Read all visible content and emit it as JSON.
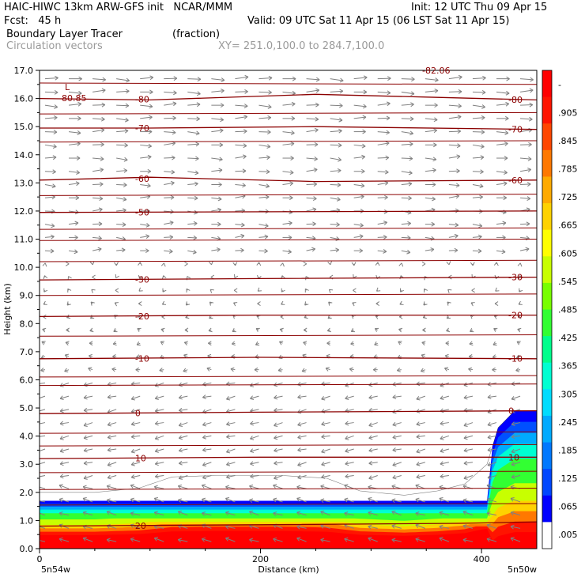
{
  "header": {
    "model_line": "HAIC-HIWC 13km ARW-GFS init   NCAR/MMM",
    "init_line": "Init: 12 UTC Thu 09 Apr 15",
    "fcst_line": "Fcst:   45 h",
    "valid_line": "Valid: 09 UTC Sat 11 Apr 15 (06 LST Sat 11 Apr 15)",
    "field1_name": "Boundary Layer Tracer",
    "field1_units": "(fraction)",
    "field2_name": "Circulation vectors",
    "xsec_endpoints": "XY= 251.0,100.0 to 284.7,100.0"
  },
  "colors": {
    "contour": "#8b0000",
    "vector": "#808080",
    "colorbar": [
      "#ffffff",
      "#0000ff",
      "#0046ff",
      "#0078ff",
      "#00aaff",
      "#00dcff",
      "#00ffd2",
      "#00ff8c",
      "#32ff32",
      "#78ff00",
      "#c8ff00",
      "#ffff00",
      "#ffd200",
      "#ffaa00",
      "#ff7800",
      "#ff4600",
      "#ff1400",
      "#ff0000"
    ]
  },
  "chart_data": {
    "type": "heatmap",
    "title": "Boundary Layer Tracer",
    "units": "(fraction)",
    "xlabel": "Distance (km)",
    "ylabel": "Height (km)",
    "xlim": [
      0,
      450
    ],
    "ylim": [
      0,
      17
    ],
    "x_ticks": [
      "0",
      "200",
      "400"
    ],
    "y_ticks": [
      "0.0",
      "1.0",
      "2.0",
      "3.0",
      "4.0",
      "5.0",
      "6.0",
      "7.0",
      "8.0",
      "9.0",
      "10.0",
      "11.0",
      "12.0",
      "13.0",
      "14.0",
      "15.0",
      "16.0",
      "17.0"
    ],
    "x_endpoint_labels": [
      "5n54w",
      "5n50w"
    ],
    "colorbar_labels": [
      "-",
      ".905",
      ".845",
      ".785",
      ".725",
      ".665",
      ".605",
      ".545",
      ".485",
      ".425",
      ".365",
      ".305",
      ".245",
      ".185",
      ".125",
      ".065",
      ".005"
    ],
    "tracer_top_km": [
      [
        0,
        2.0
      ],
      [
        50,
        2.0
      ],
      [
        90,
        2.15
      ],
      [
        120,
        2.55
      ],
      [
        160,
        2.6
      ],
      [
        220,
        2.6
      ],
      [
        260,
        2.5
      ],
      [
        290,
        2.05
      ],
      [
        330,
        1.9
      ],
      [
        360,
        2.05
      ],
      [
        385,
        2.3
      ],
      [
        405,
        3.0
      ],
      [
        415,
        4.3
      ],
      [
        430,
        4.9
      ],
      [
        450,
        4.9
      ]
    ],
    "temperature_contours": [
      {
        "label": "-80",
        "values": [
          [
            0,
            16.0
          ],
          [
            100,
            15.95
          ],
          [
            250,
            16.15
          ],
          [
            350,
            16.05
          ],
          [
            450,
            15.95
          ]
        ]
      },
      {
        "label": "-70",
        "values": [
          [
            0,
            14.95
          ],
          [
            100,
            14.95
          ],
          [
            250,
            15.0
          ],
          [
            450,
            14.9
          ]
        ]
      },
      {
        "label": "-60",
        "values": [
          [
            0,
            13.1
          ],
          [
            100,
            13.2
          ],
          [
            250,
            13.05
          ],
          [
            450,
            13.1
          ]
        ]
      },
      {
        "label": "-50",
        "values": [
          [
            0,
            11.95
          ],
          [
            450,
            12.0
          ]
        ]
      },
      {
        "label": "-30",
        "values": [
          [
            0,
            9.55
          ],
          [
            200,
            9.6
          ],
          [
            450,
            9.65
          ]
        ]
      },
      {
        "label": "-20",
        "values": [
          [
            0,
            8.25
          ],
          [
            200,
            8.3
          ],
          [
            450,
            8.3
          ]
        ]
      },
      {
        "label": "-10",
        "values": [
          [
            0,
            6.75
          ],
          [
            200,
            6.8
          ],
          [
            450,
            6.75
          ]
        ]
      },
      {
        "label": "0",
        "values": [
          [
            0,
            4.8
          ],
          [
            200,
            4.85
          ],
          [
            450,
            4.9
          ]
        ]
      },
      {
        "label": "10",
        "values": [
          [
            0,
            3.2
          ],
          [
            200,
            3.25
          ],
          [
            450,
            3.25
          ]
        ]
      },
      {
        "label": "20",
        "values": [
          [
            0,
            0.8
          ],
          [
            200,
            0.85
          ],
          [
            380,
            0.9
          ],
          [
            450,
            0.95
          ]
        ]
      }
    ],
    "contour_labels": [
      "-80",
      "-70",
      "-60",
      "-50",
      "-30",
      "-20",
      "-10",
      "0",
      "10",
      "20"
    ],
    "annotations": [
      "L",
      "-80.85",
      "-82.06"
    ]
  }
}
